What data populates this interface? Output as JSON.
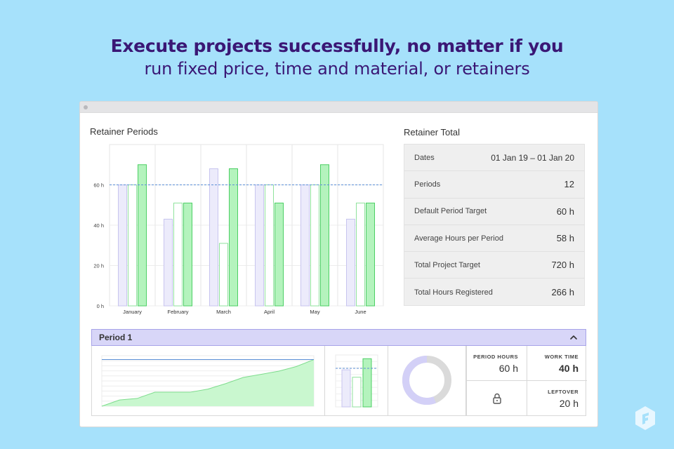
{
  "headline": {
    "line1": "Execute  projects successfully, no matter if you",
    "line2": "run fixed price, time and material, or retainers"
  },
  "retainer_periods": {
    "title": "Retainer Periods"
  },
  "chart_data": {
    "type": "bar",
    "categories": [
      "January",
      "February",
      "March",
      "April",
      "May",
      "June"
    ],
    "series": [
      {
        "values": [
          60,
          43,
          68,
          60,
          60,
          43
        ]
      },
      {
        "values": [
          60,
          51,
          31,
          60,
          60,
          51
        ]
      },
      {
        "values": [
          70,
          51,
          68,
          51,
          70,
          51
        ]
      }
    ],
    "target": 60,
    "yticks": [
      "0 h",
      "20 h",
      "40 h",
      "60 h"
    ],
    "ytick_values": [
      0,
      20,
      40,
      60
    ],
    "ylim": [
      0,
      80
    ],
    "colors": [
      "#ecebfb",
      "#ffffff",
      "#b4f3bd"
    ],
    "stroke_colors": [
      "#c8c5ef",
      "#8fe29c",
      "#4ccf64"
    ],
    "target_color": "#5b8fd6",
    "grid": true
  },
  "retainer_total": {
    "title": "Retainer Total",
    "rows": [
      {
        "label": "Dates",
        "value": "01 Jan 19  –  01 Jan 20"
      },
      {
        "label": "Periods",
        "value": "12"
      },
      {
        "label": "Default Period Target",
        "value": "60 h"
      },
      {
        "label": "Average Hours per Period",
        "value": "58 h"
      },
      {
        "label": "Total Project Target",
        "value": "720 h"
      },
      {
        "label": "Total Hours Registered",
        "value": "266 h"
      }
    ]
  },
  "period": {
    "title": "Period 1",
    "chevron_icon": "chevron-up-icon",
    "burnup": {
      "target": 60,
      "cumulative": [
        0,
        8,
        10,
        18,
        18,
        18,
        22,
        29,
        37,
        41,
        45,
        51,
        60
      ],
      "ymax": 65,
      "fill": "#c9f7cf",
      "stroke": "#7edc8d",
      "target_color": "#5b8fd6"
    },
    "mini_bars": {
      "values": [
        50,
        40,
        65
      ],
      "target": 52,
      "ymax": 70
    },
    "donut": {
      "filled_fraction": 0.44,
      "filled_color": "#d3d0f7",
      "rest_color": "#dadada"
    },
    "stats": {
      "period_hours_label": "PERIOD HOURS",
      "period_hours_value": "60 h",
      "work_time_label": "WORK TIME",
      "work_time_value": "40 h",
      "leftover_label": "LEFTOVER",
      "leftover_value": "20 h",
      "lock_icon": "lock-icon"
    }
  },
  "logo": {
    "icon": "brand-logo-icon",
    "color": "#e8f7ff"
  }
}
